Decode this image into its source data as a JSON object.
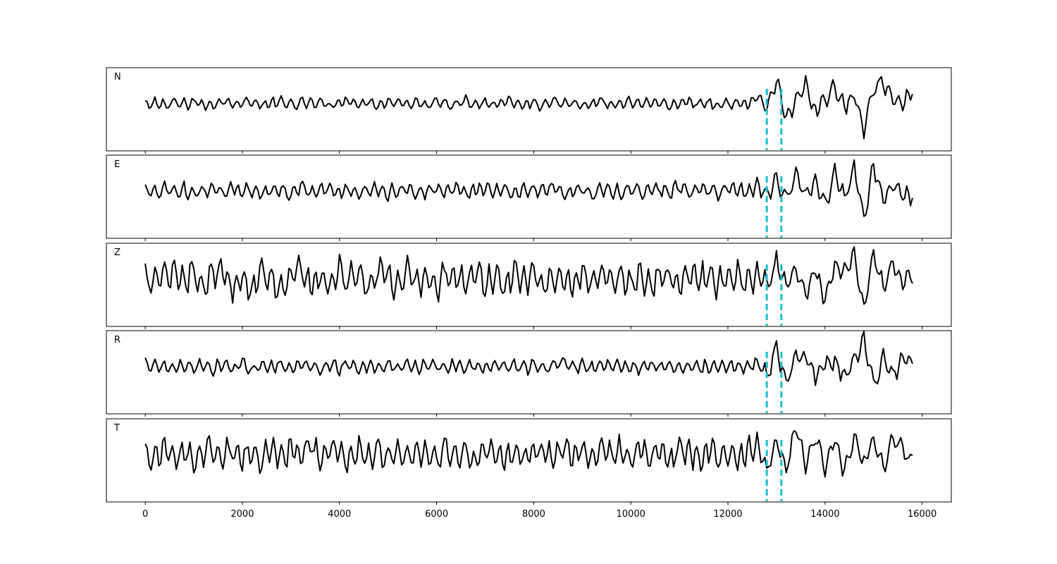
{
  "chart_data": {
    "type": "line",
    "layout": "stacked-subplots",
    "xlim": [
      -800,
      16600
    ],
    "x_ticks": [
      "0",
      "2000",
      "4000",
      "6000",
      "8000",
      "10000",
      "12000",
      "14000",
      "16000"
    ],
    "x_tick_values": [
      0,
      2000,
      4000,
      6000,
      8000,
      10000,
      12000,
      14000,
      16000
    ],
    "x_tick_labels_shown_on": "bottom-panel",
    "y_ticks_shown": false,
    "grid": false,
    "legend": "none",
    "sample_count": 15800,
    "pick_lines": [
      {
        "x": 12800,
        "color": "#17becf",
        "style": "dashed"
      },
      {
        "x": 13100,
        "color": "#17becf",
        "style": "dashed"
      }
    ],
    "series": [
      {
        "name": "N",
        "color": "#000000",
        "noise_amplitude": 0.16,
        "event_amplitude": 0.75,
        "values_sampled_every_200": [
          0.02,
          0.05,
          -0.08,
          0.1,
          -0.04,
          0.08,
          0.0,
          -0.12,
          0.14,
          -0.06,
          0.04,
          0.1,
          -0.1,
          0.02,
          0.12,
          -0.08,
          0.06,
          -0.02,
          0.1,
          -0.12,
          0.04,
          0.16,
          -0.06,
          0.08,
          -0.1,
          0.02,
          0.12,
          -0.04,
          0.06,
          -0.14,
          0.1,
          0.02,
          -0.08,
          0.14,
          -0.02,
          0.06,
          -0.1,
          0.12,
          0.0,
          -0.06,
          0.08,
          -0.12,
          0.18,
          -0.04,
          0.06,
          -0.1,
          0.02,
          0.14,
          -0.08,
          0.04,
          0.1,
          -0.06,
          0.0,
          0.12,
          -0.1,
          0.04,
          0.08,
          -0.02,
          0.06,
          -0.12,
          0.02,
          0.1,
          -0.04,
          0.36,
          -0.2,
          0.82,
          -0.42,
          0.1,
          0.6,
          -0.3,
          0.18,
          0.52,
          -0.1,
          0.3,
          -0.9,
          0.55,
          0.62,
          0.2,
          -0.1,
          0.55
        ]
      },
      {
        "name": "E",
        "color": "#000000",
        "noise_amplitude": 0.22,
        "event_amplitude": 0.75,
        "values_sampled_every_200": [
          0.05,
          -0.12,
          0.14,
          -0.06,
          0.1,
          -0.16,
          0.04,
          0.12,
          -0.1,
          0.18,
          -0.02,
          0.08,
          -0.14,
          0.06,
          0.1,
          -0.08,
          0.2,
          -0.12,
          0.02,
          0.16,
          -0.06,
          0.1,
          -0.18,
          0.04,
          0.12,
          -0.1,
          0.06,
          0.16,
          -0.14,
          0.02,
          0.1,
          -0.06,
          0.18,
          -0.12,
          0.04,
          0.14,
          -0.08,
          0.1,
          -0.16,
          0.06,
          0.12,
          -0.02,
          0.18,
          -0.1,
          0.04,
          0.08,
          -0.14,
          0.12,
          0.02,
          -0.08,
          0.16,
          -0.1,
          0.06,
          0.12,
          -0.04,
          0.18,
          -0.12,
          0.08,
          0.02,
          -0.1,
          0.14,
          0.04,
          -0.06,
          0.3,
          -0.2,
          0.42,
          -0.3,
          0.5,
          -0.1,
          0.35,
          -0.45,
          0.6,
          -0.25,
          0.75,
          -0.9,
          0.85,
          -0.3,
          0.2,
          -0.15,
          -0.12
        ]
      },
      {
        "name": "Z",
        "color": "#000000",
        "noise_amplitude": 0.45,
        "event_amplitude": 0.8,
        "values_sampled_every_200": [
          0.04,
          -0.06,
          0.08,
          0.6,
          -0.3,
          0.4,
          -0.5,
          0.3,
          0.5,
          -0.4,
          0.2,
          -0.6,
          0.45,
          0.1,
          -0.55,
          0.3,
          0.5,
          -0.35,
          0.2,
          -0.45,
          0.55,
          -0.1,
          0.35,
          -0.5,
          0.4,
          0.15,
          -0.4,
          0.5,
          -0.2,
          0.3,
          -0.55,
          0.45,
          0.05,
          -0.35,
          0.5,
          -0.3,
          0.2,
          -0.45,
          0.55,
          -0.15,
          0.35,
          -0.5,
          0.3,
          0.1,
          -0.4,
          0.45,
          -0.25,
          0.3,
          -0.05,
          0.35,
          -0.3,
          0.25,
          -0.4,
          0.2,
          0.1,
          -0.3,
          0.35,
          -0.1,
          0.25,
          -0.3,
          0.15,
          0.2,
          -0.2,
          0.25,
          -0.3,
          0.55,
          -0.25,
          0.35,
          -0.4,
          0.3,
          -0.65,
          0.45,
          0.2,
          0.75,
          -0.95,
          0.85,
          -0.3,
          0.55,
          -0.2,
          0.15
        ]
      },
      {
        "name": "R",
        "color": "#000000",
        "noise_amplitude": 0.2,
        "event_amplitude": 0.8,
        "values_sampled_every_200": [
          0.03,
          -0.02,
          0.04,
          -0.05,
          0.06,
          -0.04,
          0.08,
          -0.1,
          0.12,
          -0.08,
          0.14,
          -0.16,
          0.1,
          -0.06,
          0.12,
          -0.1,
          0.08,
          0.04,
          -0.12,
          0.1,
          -0.06,
          0.14,
          -0.08,
          0.06,
          -0.1,
          0.12,
          -0.04,
          0.08,
          -0.1,
          0.06,
          0.02,
          -0.08,
          0.1,
          -0.06,
          0.04,
          -0.08,
          0.16,
          -0.04,
          0.06,
          -0.1,
          0.08,
          -0.06,
          0.04,
          0.3,
          -0.08,
          0.06,
          -0.1,
          0.04,
          0.08,
          -0.06,
          0.02,
          -0.08,
          0.06,
          -0.04,
          0.02,
          -0.06,
          0.04,
          -0.02,
          0.06,
          -0.04,
          0.02,
          0.04,
          -0.04,
          0.18,
          -0.3,
          0.65,
          -0.5,
          0.3,
          0.35,
          -0.3,
          0.1,
          0.18,
          -0.35,
          0.2,
          0.92,
          -0.6,
          0.25,
          -0.3,
          0.3,
          0.05
        ]
      },
      {
        "name": "T",
        "color": "#000000",
        "noise_amplitude": 0.42,
        "event_amplitude": 0.8,
        "values_sampled_every_200": [
          0.1,
          -0.2,
          0.3,
          -0.25,
          0.2,
          -0.3,
          0.15,
          0.25,
          -0.2,
          0.3,
          -0.1,
          0.2,
          -0.3,
          0.35,
          -0.15,
          0.25,
          -0.2,
          0.7,
          -0.45,
          0.3,
          0.2,
          -0.35,
          0.25,
          -0.2,
          0.3,
          -0.15,
          0.25,
          -0.3,
          0.2,
          0.1,
          -0.25,
          0.3,
          -0.15,
          0.2,
          -0.3,
          0.25,
          0.1,
          -0.2,
          0.3,
          -0.25,
          0.15,
          0.2,
          -0.3,
          0.35,
          -0.1,
          0.5,
          -0.35,
          0.45,
          -0.2,
          0.3,
          -0.4,
          0.5,
          -0.25,
          0.35,
          -0.45,
          0.3,
          0.2,
          -0.4,
          0.45,
          -0.3,
          0.2,
          -0.35,
          0.1,
          0.45,
          -0.55,
          0.5,
          -0.5,
          0.9,
          -0.35,
          0.55,
          -0.4,
          0.5,
          -0.55,
          0.6,
          -0.3,
          0.5,
          -0.45,
          0.55,
          0.2,
          -0.25
        ]
      }
    ]
  }
}
